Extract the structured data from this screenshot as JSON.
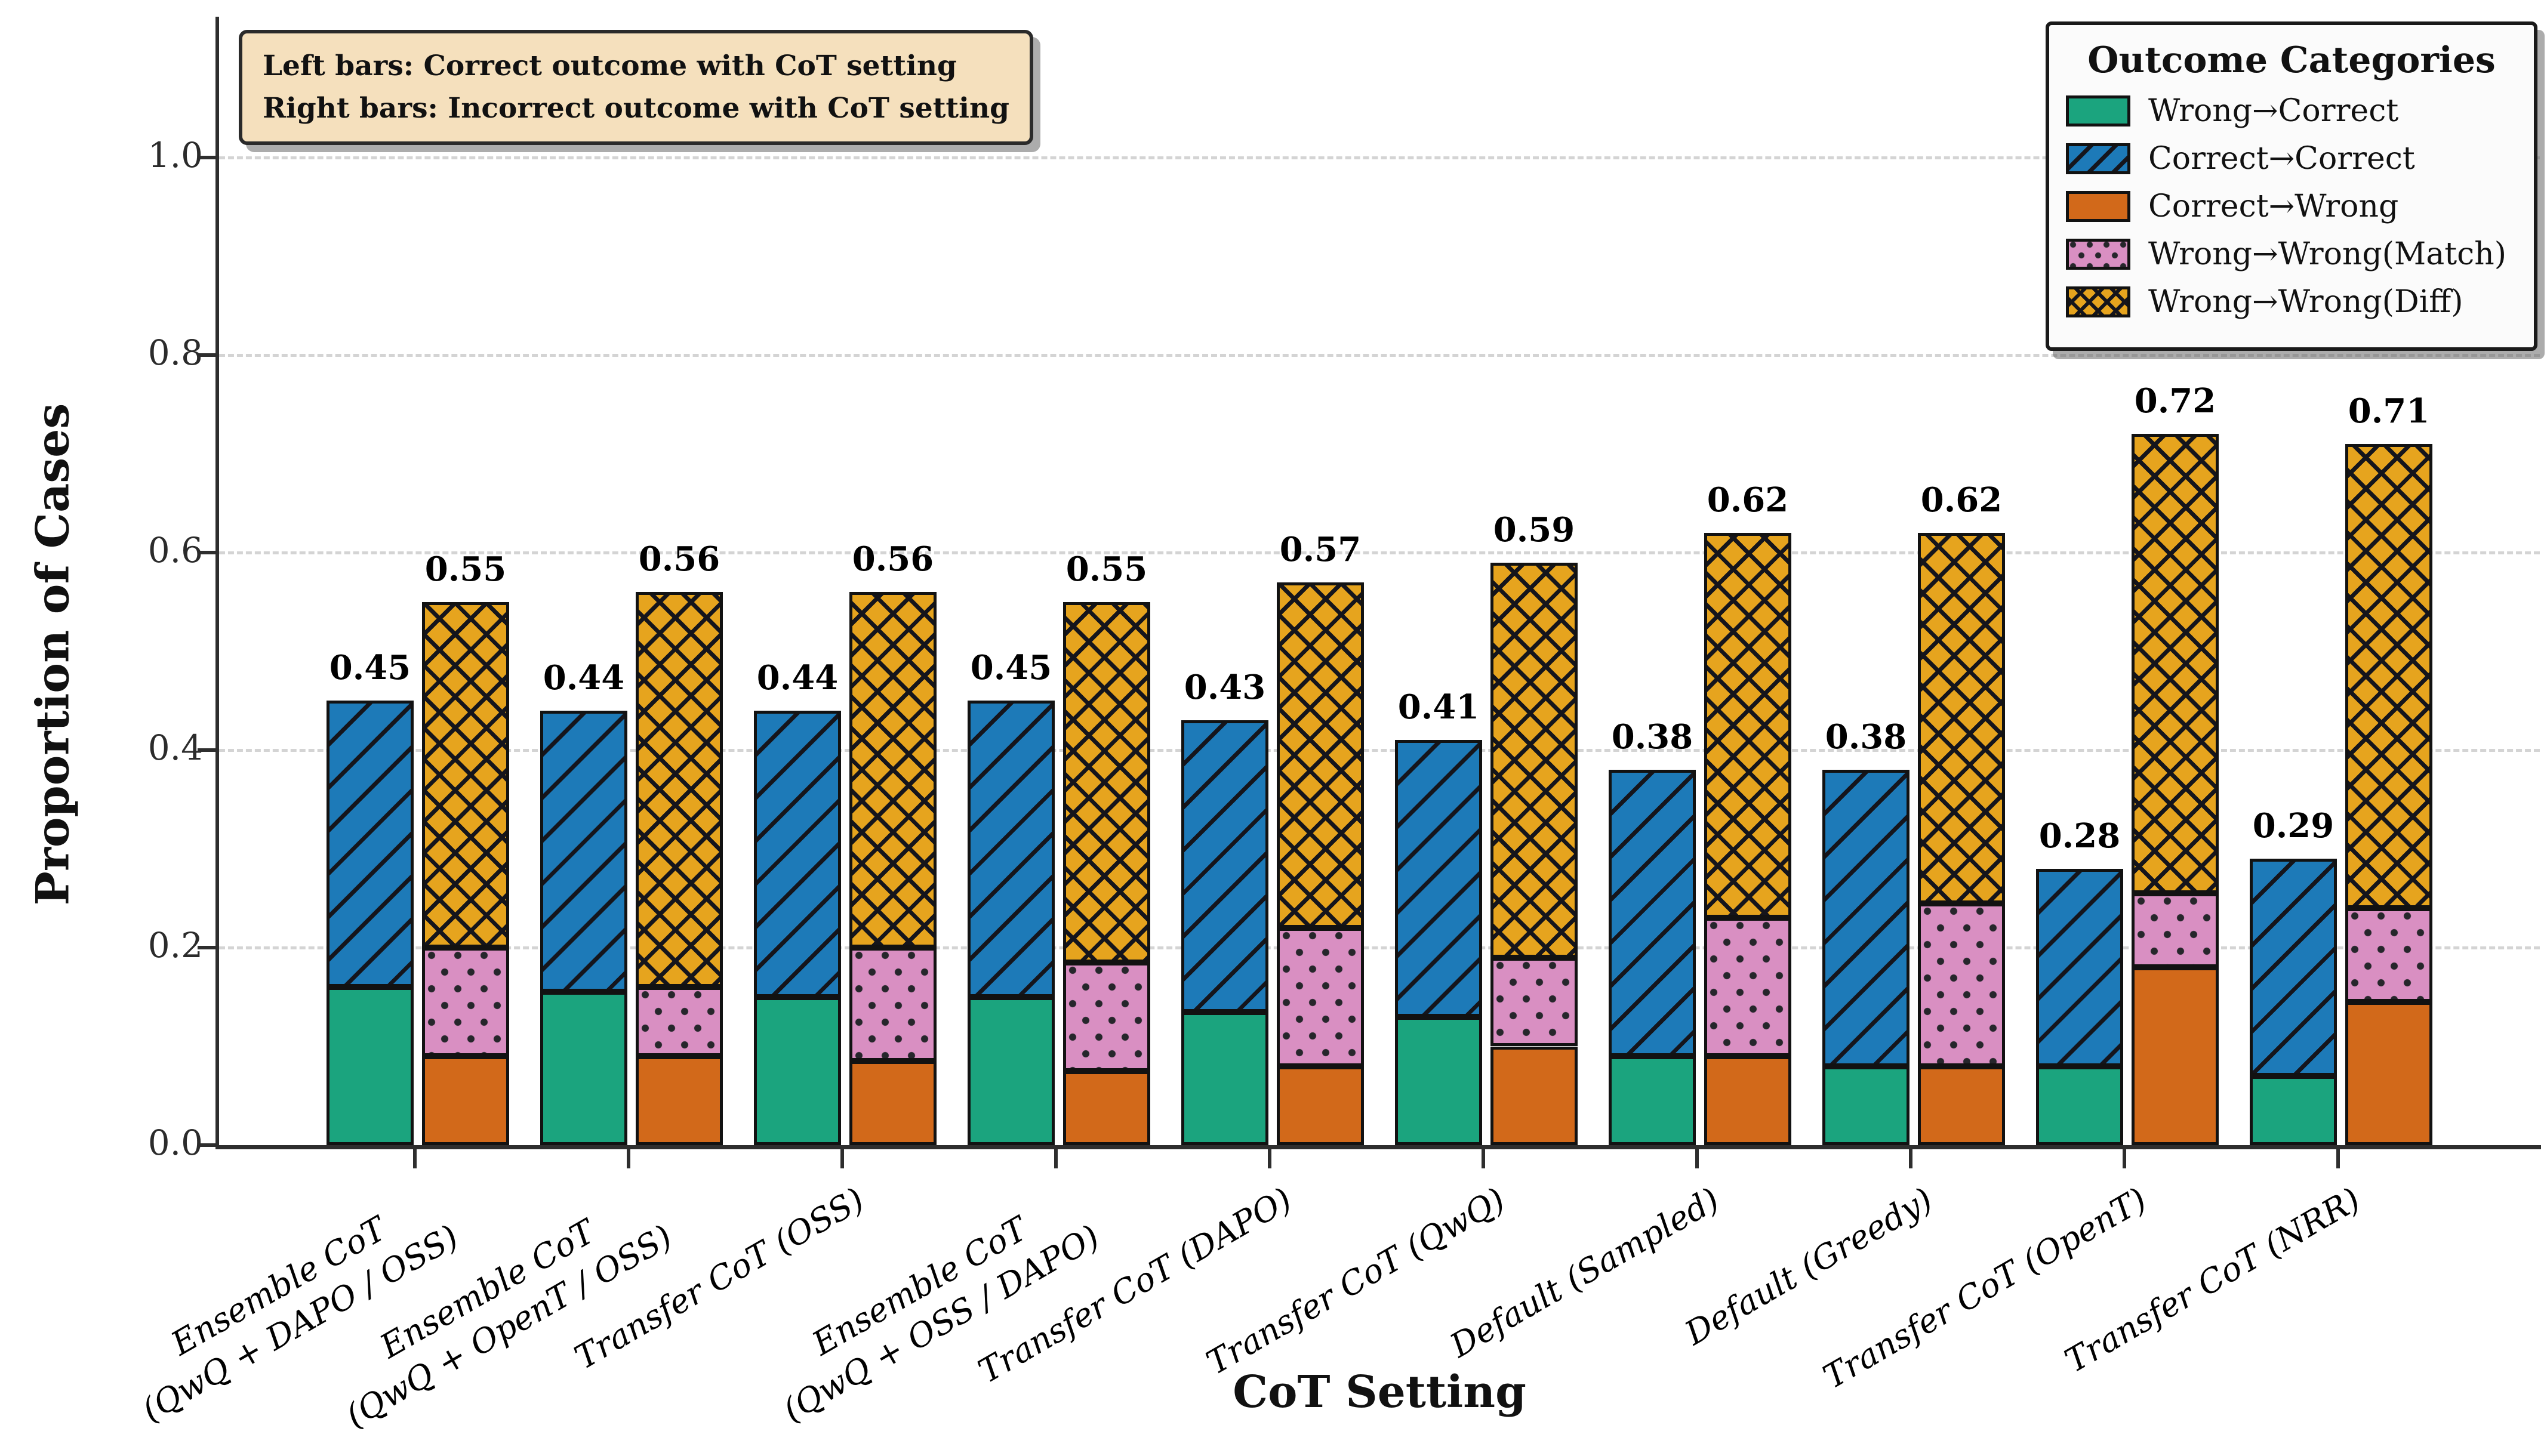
{
  "chart_data": {
    "type": "bar",
    "variant": "paired-stacked-bars",
    "title": "",
    "xlabel": "CoT Setting",
    "ylabel": "Proportion of Cases",
    "ylim": [
      0.0,
      1.1
    ],
    "yticks": [
      "0.0",
      "0.2",
      "0.4",
      "0.6",
      "0.8",
      "1.0"
    ],
    "grid": "horizontal-dashed",
    "annotation_lines": [
      "Left bars: Correct outcome with CoT setting",
      "Right bars: Incorrect outcome with CoT setting"
    ],
    "legend": {
      "title": "Outcome Categories",
      "position": "upper-right",
      "series": [
        {
          "name": "Wrong→Correct",
          "key": "wrong_correct",
          "color": "#1ba47e",
          "pattern": "solid"
        },
        {
          "name": "Correct→Correct",
          "key": "correct_correct",
          "color": "#1d7ab8",
          "pattern": "diagonal-hatch"
        },
        {
          "name": "Correct→Wrong",
          "key": "correct_wrong",
          "color": "#d2691a",
          "pattern": "solid"
        },
        {
          "name": "Wrong→Wrong(Match)",
          "key": "wrong_wrong_match",
          "color": "#d98fc2",
          "pattern": "dots"
        },
        {
          "name": "Wrong→Wrong(Diff)",
          "key": "wrong_wrong_diff",
          "color": "#e6a41e",
          "pattern": "crosshatch"
        }
      ]
    },
    "left_bar_stack": [
      "wrong_correct",
      "correct_correct"
    ],
    "right_bar_stack": [
      "correct_wrong",
      "wrong_wrong_match",
      "wrong_wrong_diff"
    ],
    "groups": [
      {
        "category": "Ensemble CoT\n(QwQ + DAPO / OSS)",
        "left_total": 0.45,
        "right_total": 0.55,
        "wrong_correct": 0.16,
        "correct_correct": 0.29,
        "correct_wrong": 0.09,
        "wrong_wrong_match": 0.11,
        "wrong_wrong_diff": 0.35
      },
      {
        "category": "Ensemble CoT\n(QwQ + OpenT / OSS)",
        "left_total": 0.44,
        "right_total": 0.56,
        "wrong_correct": 0.155,
        "correct_correct": 0.285,
        "correct_wrong": 0.09,
        "wrong_wrong_match": 0.07,
        "wrong_wrong_diff": 0.4
      },
      {
        "category": "Transfer CoT (OSS)",
        "left_total": 0.44,
        "right_total": 0.56,
        "wrong_correct": 0.15,
        "correct_correct": 0.29,
        "correct_wrong": 0.085,
        "wrong_wrong_match": 0.115,
        "wrong_wrong_diff": 0.36
      },
      {
        "category": "Ensemble CoT\n(QwQ + OSS / DAPO)",
        "left_total": 0.45,
        "right_total": 0.55,
        "wrong_correct": 0.15,
        "correct_correct": 0.3,
        "correct_wrong": 0.075,
        "wrong_wrong_match": 0.11,
        "wrong_wrong_diff": 0.365
      },
      {
        "category": "Transfer CoT (DAPO)",
        "left_total": 0.43,
        "right_total": 0.57,
        "wrong_correct": 0.135,
        "correct_correct": 0.295,
        "correct_wrong": 0.08,
        "wrong_wrong_match": 0.14,
        "wrong_wrong_diff": 0.35
      },
      {
        "category": "Transfer CoT (QwQ)",
        "left_total": 0.41,
        "right_total": 0.59,
        "wrong_correct": 0.13,
        "correct_correct": 0.28,
        "correct_wrong": 0.1,
        "wrong_wrong_match": 0.09,
        "wrong_wrong_diff": 0.4
      },
      {
        "category": "Default (Sampled)",
        "left_total": 0.38,
        "right_total": 0.62,
        "wrong_correct": 0.09,
        "correct_correct": 0.29,
        "correct_wrong": 0.09,
        "wrong_wrong_match": 0.14,
        "wrong_wrong_diff": 0.39
      },
      {
        "category": "Default (Greedy)",
        "left_total": 0.38,
        "right_total": 0.62,
        "wrong_correct": 0.08,
        "correct_correct": 0.3,
        "correct_wrong": 0.08,
        "wrong_wrong_match": 0.165,
        "wrong_wrong_diff": 0.375
      },
      {
        "category": "Transfer CoT (OpenT)",
        "left_total": 0.28,
        "right_total": 0.72,
        "wrong_correct": 0.08,
        "correct_correct": 0.2,
        "correct_wrong": 0.18,
        "wrong_wrong_match": 0.075,
        "wrong_wrong_diff": 0.465
      },
      {
        "category": "Transfer CoT (NRR)",
        "left_total": 0.29,
        "right_total": 0.71,
        "wrong_correct": 0.07,
        "correct_correct": 0.22,
        "correct_wrong": 0.145,
        "wrong_wrong_match": 0.095,
        "wrong_wrong_diff": 0.47
      }
    ]
  },
  "colors": {
    "annotation_bg": "#f5e0bd",
    "legend_bg": "#fbfbfb",
    "gridline": "#cdcdcd",
    "spine": "#2e2e2e",
    "bar_edge": "#121212"
  }
}
